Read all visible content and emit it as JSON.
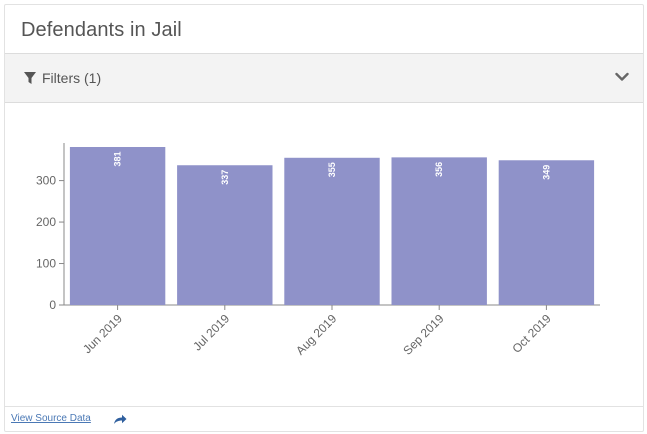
{
  "card": {
    "title": "Defendants in Jail"
  },
  "filters": {
    "label": "Filters (1)",
    "icon": "filter-icon",
    "toggle_icon": "chevron-down-icon"
  },
  "footer": {
    "source_link": "View Source Data",
    "share_icon": "share-arrow-icon"
  },
  "colors": {
    "bar": "#8f92c9",
    "axis": "#888888",
    "tick_text": "#666666",
    "data_label": "#ffffff"
  },
  "chart_data": {
    "type": "bar",
    "categories": [
      "Jun 2019",
      "Jul 2019",
      "Aug 2019",
      "Sep 2019",
      "Oct 2019"
    ],
    "values": [
      381,
      337,
      355,
      356,
      349
    ],
    "data_labels": [
      "381",
      "337",
      "355",
      "356",
      "349"
    ],
    "title": "",
    "xlabel": "",
    "ylabel": "",
    "ylim": [
      0,
      381
    ],
    "yticks": [
      0,
      100,
      200,
      300
    ],
    "ytick_labels": [
      "0",
      "100",
      "200",
      "300"
    ],
    "grid": false,
    "legend": "none"
  }
}
